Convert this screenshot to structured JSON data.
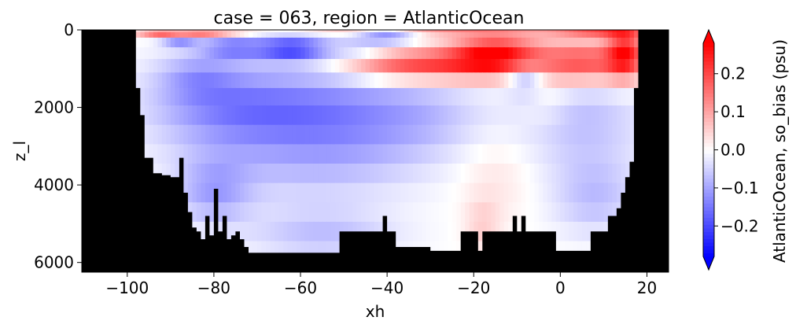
{
  "chart_data": {
    "type": "heatmap",
    "title": "case = 063, region = AtlanticOcean",
    "xlabel": "xh",
    "ylabel": "z_l",
    "xlim": [
      -110.5,
      25
    ],
    "ylim": [
      6250,
      0
    ],
    "y_inverted": true,
    "x_ticks": [
      -100,
      -80,
      -60,
      -40,
      -20,
      0,
      20
    ],
    "x_tick_labels": [
      "−100",
      "−80",
      "−60",
      "−40",
      "−20",
      "0",
      "20"
    ],
    "y_ticks": [
      0,
      2000,
      4000,
      6000
    ],
    "y_tick_labels": [
      "0",
      "2000",
      "4000",
      "6000"
    ],
    "colorbar": {
      "label": "AtlanticOcean, so_bias (psu)",
      "vmin": -0.28,
      "vmax": 0.28,
      "extend": "both",
      "cmap": "bwr",
      "ticks": [
        -0.2,
        -0.1,
        0.0,
        0.1,
        0.2
      ],
      "tick_labels": [
        "−0.2",
        "−0.1",
        "0.0",
        "0.1",
        "0.2"
      ]
    },
    "colors": {
      "mask": "#000000",
      "low": "#0000ff",
      "mid": "#ffffff",
      "high": "#ff0000"
    },
    "layers": [
      {
        "top": 0,
        "bottom": 60
      },
      {
        "top": 60,
        "bottom": 200
      },
      {
        "top": 200,
        "bottom": 450
      },
      {
        "top": 450,
        "bottom": 750
      },
      {
        "top": 750,
        "bottom": 1100
      },
      {
        "top": 1100,
        "bottom": 1500
      },
      {
        "top": 1500,
        "bottom": 1950
      },
      {
        "top": 1950,
        "bottom": 2450
      },
      {
        "top": 2450,
        "bottom": 2950
      },
      {
        "top": 2950,
        "bottom": 3450
      },
      {
        "top": 3450,
        "bottom": 3950
      },
      {
        "top": 3950,
        "bottom": 4450
      },
      {
        "top": 4450,
        "bottom": 4950
      },
      {
        "top": 4950,
        "bottom": 5450
      },
      {
        "top": 5450,
        "bottom": 5950
      },
      {
        "top": 5950,
        "bottom": 6250
      }
    ],
    "bottom_depth": [
      [
        -110.5,
        0
      ],
      [
        -98,
        1500
      ],
      [
        -97,
        2200
      ],
      [
        -96,
        3300
      ],
      [
        -94,
        3700
      ],
      [
        -92,
        3750
      ],
      [
        -90,
        3800
      ],
      [
        -88,
        3300
      ],
      [
        -87,
        4200
      ],
      [
        -86,
        4700
      ],
      [
        -85,
        5100
      ],
      [
        -84,
        5200
      ],
      [
        -83,
        5400
      ],
      [
        -82,
        4800
      ],
      [
        -81,
        5300
      ],
      [
        -80,
        4100
      ],
      [
        -79,
        5200
      ],
      [
        -78,
        4800
      ],
      [
        -77,
        5400
      ],
      [
        -76,
        5300
      ],
      [
        -75,
        5200
      ],
      [
        -74,
        5400
      ],
      [
        -73,
        5600
      ],
      [
        -72,
        5750
      ],
      [
        -60,
        5750
      ],
      [
        -52,
        5750
      ],
      [
        -51,
        5200
      ],
      [
        -45,
        5200
      ],
      [
        -42,
        5200
      ],
      [
        -41,
        4800
      ],
      [
        -40,
        5200
      ],
      [
        -38,
        5600
      ],
      [
        -30,
        5700
      ],
      [
        -24,
        5700
      ],
      [
        -23,
        5200
      ],
      [
        -22,
        5200
      ],
      [
        -20,
        5200
      ],
      [
        -19,
        5700
      ],
      [
        -18,
        5200
      ],
      [
        -12,
        5200
      ],
      [
        -11,
        4800
      ],
      [
        -10,
        5200
      ],
      [
        -9,
        4800
      ],
      [
        -8,
        5200
      ],
      [
        -6,
        5200
      ],
      [
        -2,
        5200
      ],
      [
        -1,
        5700
      ],
      [
        3,
        5700
      ],
      [
        6,
        5700
      ],
      [
        7,
        5200
      ],
      [
        10,
        5200
      ],
      [
        11,
        4800
      ],
      [
        13,
        4600
      ],
      [
        14,
        4200
      ],
      [
        15,
        3800
      ],
      [
        16,
        3400
      ],
      [
        17,
        1500
      ],
      [
        18,
        0
      ],
      [
        25,
        0
      ]
    ],
    "anomaly_features": [
      {
        "x": -62,
        "z": 2100,
        "sx": 14,
        "sz": 700,
        "amp": -0.11
      },
      {
        "x": -80,
        "z": 1900,
        "sx": 12,
        "sz": 800,
        "amp": -0.09
      },
      {
        "x": -45,
        "z": 2300,
        "sx": 12,
        "sz": 900,
        "amp": -0.06
      },
      {
        "x": -30,
        "z": 2200,
        "sx": 10,
        "sz": 700,
        "amp": -0.05
      },
      {
        "x": 5,
        "z": 2300,
        "sx": 10,
        "sz": 900,
        "amp": -0.07
      },
      {
        "x": -62,
        "z": 480,
        "sx": 6,
        "sz": 220,
        "amp": -0.2
      },
      {
        "x": -76,
        "z": 440,
        "sx": 5,
        "sz": 220,
        "amp": -0.12
      },
      {
        "x": -88,
        "z": 220,
        "sx": 3,
        "sz": 140,
        "amp": -0.14
      },
      {
        "x": -40,
        "z": 140,
        "sx": 5,
        "sz": 130,
        "amp": -0.16
      },
      {
        "x": -46,
        "z": 500,
        "sx": 5,
        "sz": 180,
        "amp": -0.05
      },
      {
        "x": -15,
        "z": 650,
        "sx": 7,
        "sz": 350,
        "amp": 0.26
      },
      {
        "x": -28,
        "z": 900,
        "sx": 10,
        "sz": 300,
        "amp": 0.16
      },
      {
        "x": -40,
        "z": 950,
        "sx": 9,
        "sz": 260,
        "amp": 0.1
      },
      {
        "x": 5,
        "z": 850,
        "sx": 8,
        "sz": 380,
        "amp": 0.2
      },
      {
        "x": 15,
        "z": 600,
        "sx": 3,
        "sz": 450,
        "amp": 0.22
      },
      {
        "x": -8,
        "z": 1300,
        "sx": 3,
        "sz": 250,
        "amp": -0.1
      },
      {
        "x": -3,
        "z": 1850,
        "sx": 4,
        "sz": 500,
        "amp": 0.03
      },
      {
        "x": -90,
        "z": 120,
        "sx": 5,
        "sz": 80,
        "amp": 0.22
      },
      {
        "x": -80,
        "z": 100,
        "sx": 6,
        "sz": 80,
        "amp": 0.14
      },
      {
        "x": -30,
        "z": 40,
        "sx": 20,
        "sz": 70,
        "amp": 0.12
      },
      {
        "x": 10,
        "z": 60,
        "sx": 8,
        "sz": 80,
        "amp": 0.18
      },
      {
        "x": -84,
        "z": 1200,
        "sx": 6,
        "sz": 400,
        "amp": -0.06
      },
      {
        "x": -60,
        "z": 3500,
        "sx": 18,
        "sz": 700,
        "amp": -0.06
      },
      {
        "x": -80,
        "z": 4200,
        "sx": 6,
        "sz": 600,
        "amp": -0.09
      },
      {
        "x": -15,
        "z": 3800,
        "sx": 6,
        "sz": 800,
        "amp": 0.03
      },
      {
        "x": -18,
        "z": 5100,
        "sx": 3,
        "sz": 500,
        "amp": 0.05
      },
      {
        "x": -55,
        "z": 5300,
        "sx": 12,
        "sz": 500,
        "amp": -0.07
      },
      {
        "x": 8,
        "z": 4300,
        "sx": 7,
        "sz": 700,
        "amp": -0.07
      }
    ]
  }
}
